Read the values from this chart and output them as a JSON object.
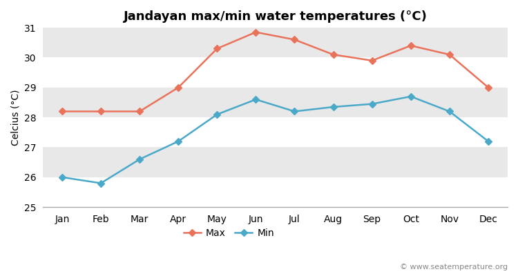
{
  "title": "Jandayan max/min water temperatures (°C)",
  "ylabel": "Celcius (°C)",
  "months": [
    "Jan",
    "Feb",
    "Mar",
    "Apr",
    "May",
    "Jun",
    "Jul",
    "Aug",
    "Sep",
    "Oct",
    "Nov",
    "Dec"
  ],
  "max_values": [
    28.2,
    28.2,
    28.2,
    29.0,
    30.3,
    30.85,
    30.6,
    30.1,
    29.9,
    30.4,
    30.1,
    29.0
  ],
  "min_values": [
    26.0,
    25.8,
    26.6,
    27.2,
    28.1,
    28.6,
    28.2,
    28.35,
    28.45,
    28.7,
    28.2,
    27.2
  ],
  "max_color": "#e8725a",
  "min_color": "#4aa8c8",
  "fig_bg_color": "#ffffff",
  "plot_bg_color": "#e8e8e8",
  "band_color_light": "#f0f0f0",
  "band_color_dark": "#e0e0e0",
  "grid_color": "#ffffff",
  "ylim": [
    25,
    31
  ],
  "yticks": [
    25,
    26,
    27,
    28,
    29,
    30,
    31
  ],
  "watermark": "© www.seatemperature.org",
  "title_fontsize": 13,
  "axis_fontsize": 10,
  "tick_fontsize": 10,
  "watermark_fontsize": 8
}
